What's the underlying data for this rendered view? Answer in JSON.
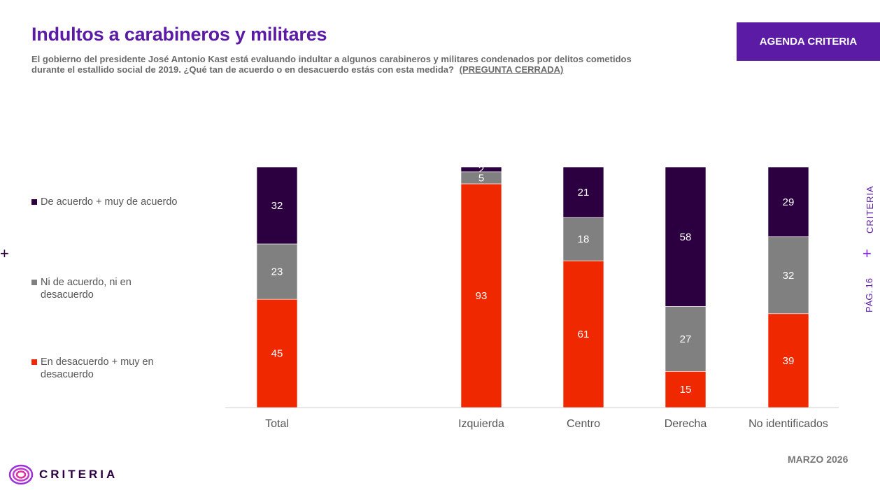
{
  "header": {
    "title": "Indultos a carabineros y militares",
    "subtitle": "El gobierno del presidente José Antonio Kast está evaluando indultar a algunos carabineros y militares condenados por delitos cometidos durante el estallido social de 2019. ¿Qué tan de acuerdo o en desacuerdo estás con esta medida?",
    "subtitle_tag": "(PREGUNTA CERRADA)",
    "badge": "AGENDA CRITERIA"
  },
  "side": {
    "brand": "CRITERIA",
    "plus": "+",
    "page": "PÁG. 16"
  },
  "left_plus": "+",
  "footer": {
    "date": "MARZO 2026",
    "logo_text": "CRITERIA"
  },
  "colors": {
    "acuerdo": "#2c0040",
    "ni": "#808080",
    "desacuerdo": "#f02800",
    "accent": "#5b1ba5"
  },
  "chart_data": {
    "type": "bar",
    "stacked": true,
    "categories": [
      "Total",
      "Izquierda",
      "Centro",
      "Derecha",
      "No identificados"
    ],
    "series": [
      {
        "name": "De acuerdo + muy de acuerdo",
        "color": "#2c0040",
        "values": [
          32,
          2,
          21,
          58,
          29
        ]
      },
      {
        "name": "Ni de acuerdo, ni en desacuerdo",
        "color": "#808080",
        "values": [
          23,
          5,
          18,
          27,
          32
        ]
      },
      {
        "name": "En desacuerdo + muy en desacuerdo",
        "color": "#f02800",
        "values": [
          45,
          93,
          61,
          15,
          39
        ]
      }
    ],
    "ylim": [
      0,
      100
    ],
    "title": "Indultos a carabineros y militares",
    "legend_position": "left"
  }
}
